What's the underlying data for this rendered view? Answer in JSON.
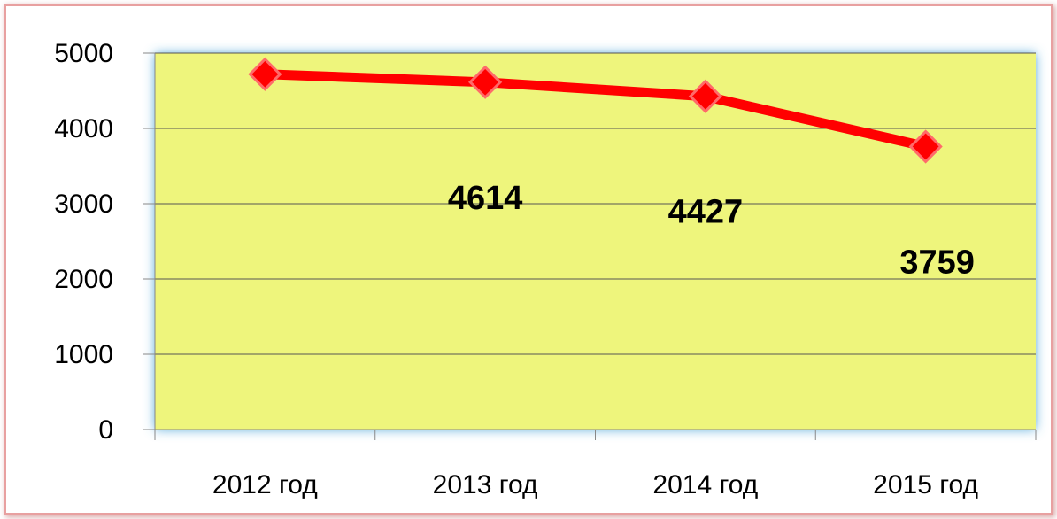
{
  "chart_data": {
    "type": "line",
    "categories": [
      "2012 год",
      "2013 год",
      "2014 год",
      "2015 год"
    ],
    "series": [
      {
        "color": "#ff0000",
        "values": [
          4720,
          4614,
          4427,
          3759
        ]
      }
    ],
    "value_labels": [
      null,
      "4614",
      "4427",
      "3759"
    ],
    "ylim": [
      0,
      5000
    ],
    "yticks": [
      0,
      1000,
      2000,
      3000,
      4000,
      5000
    ],
    "grid": true
  }
}
